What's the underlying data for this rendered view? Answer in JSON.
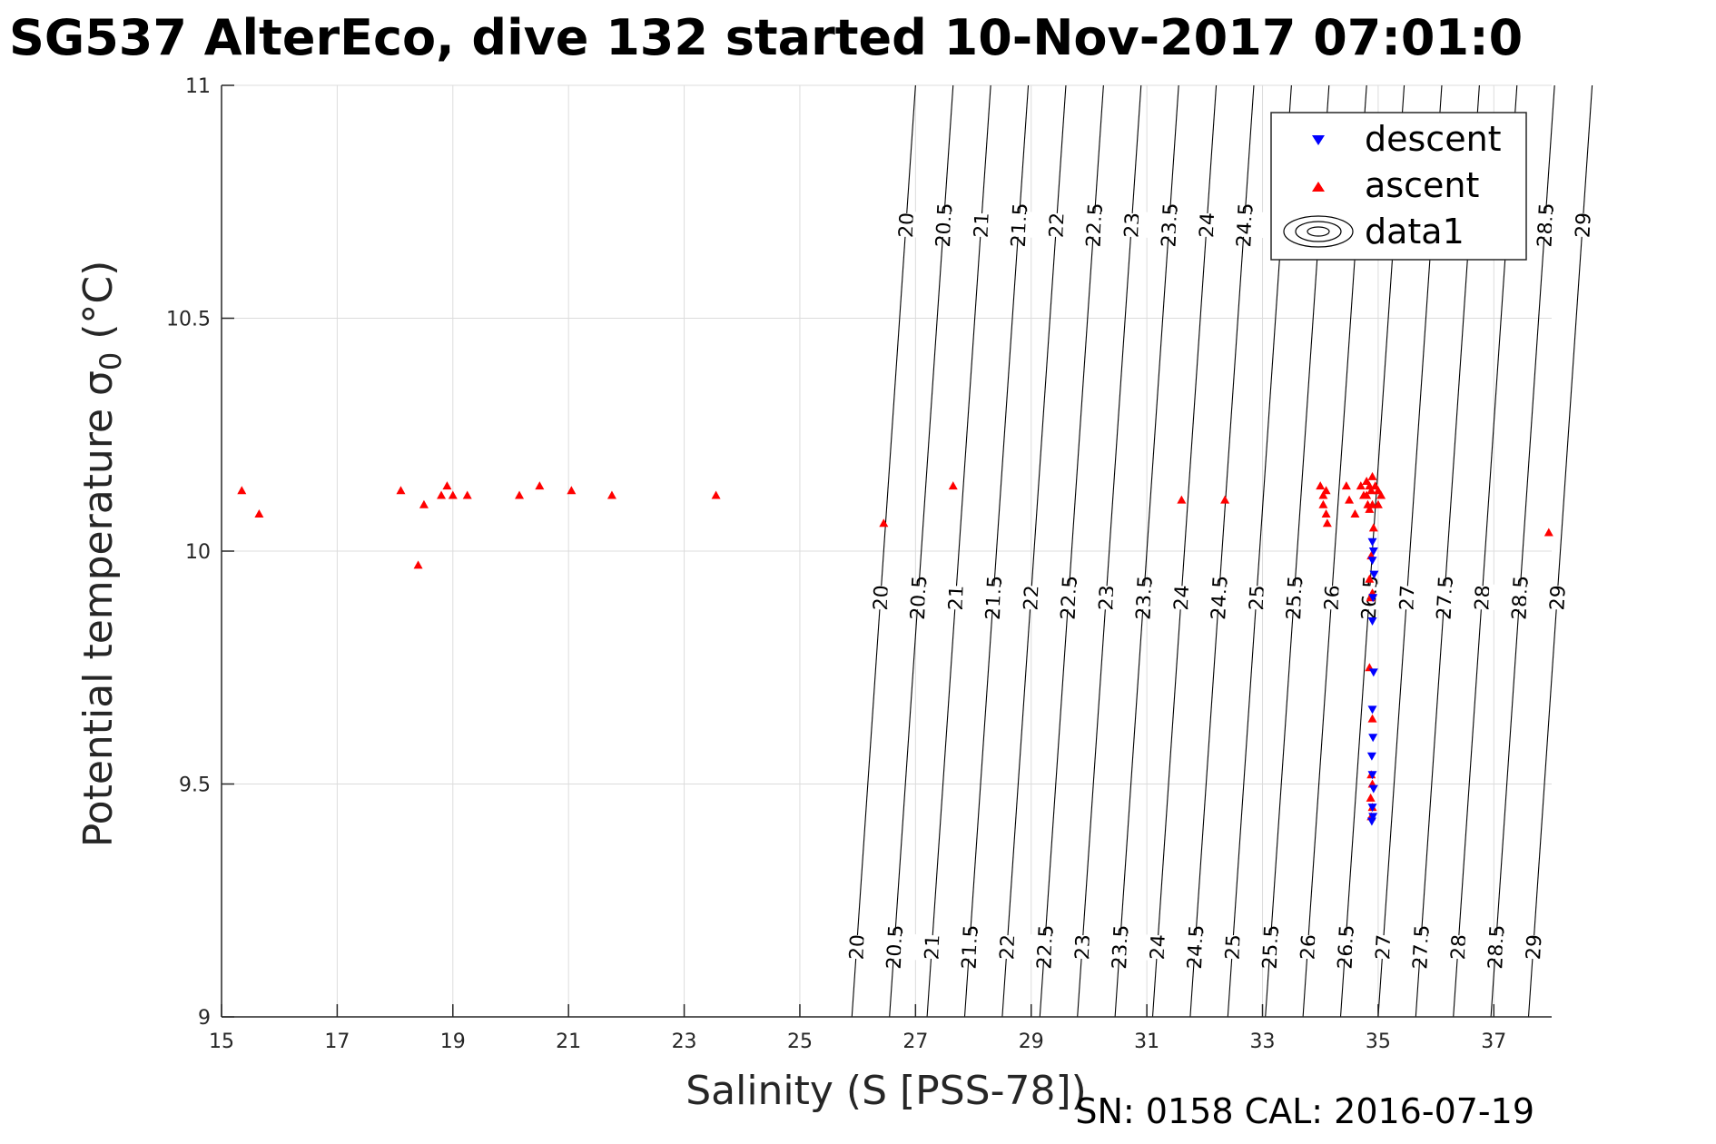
{
  "chart_data": {
    "type": "scatter",
    "title": "SG537 AlterEco, dive 132 started 10-Nov-2017 07:01:0",
    "xlabel": "Salinity (S [PSS-78])",
    "ylabel_main": "Potential temperature σ",
    "ylabel_sub": "0",
    "ylabel_unit": " (°C)",
    "xlim": [
      15,
      38
    ],
    "ylim": [
      9,
      11
    ],
    "x_ticks": [
      15,
      17,
      19,
      21,
      23,
      25,
      27,
      29,
      31,
      33,
      35,
      37
    ],
    "y_ticks": [
      9,
      9.5,
      10,
      10.5,
      11
    ],
    "y_tick_labels": [
      "9",
      "9.5",
      "10",
      "10.5",
      "11"
    ],
    "grid": true,
    "legend_position": "top-right",
    "footer": "SN: 0158  CAL: 2016-07-19",
    "density_contours": {
      "name": "data1",
      "levels": [
        20,
        20.5,
        21,
        21.5,
        22,
        22.5,
        23,
        23.5,
        24,
        24.5,
        25,
        25.5,
        26,
        26.5,
        27,
        27.5,
        28,
        28.5,
        29
      ],
      "level_labels": [
        "20",
        "20.5",
        "21",
        "21.5",
        "22",
        "22.5",
        "23",
        "23.5",
        "24",
        "24.5",
        "25",
        "25.5",
        "26",
        "26.5",
        "27",
        "27.5",
        "28",
        "28.5",
        "29"
      ],
      "salinity_at_9C": [
        25.9,
        26.55,
        27.2,
        27.85,
        28.5,
        29.15,
        29.8,
        30.45,
        31.1,
        31.75,
        32.4,
        33.05,
        33.7,
        34.35,
        35.0,
        35.65,
        36.3,
        36.95,
        37.6
      ],
      "slope_salinity_per_degC": 0.55,
      "label_temps": [
        9.15,
        9.9,
        10.7
      ]
    },
    "series": [
      {
        "name": "descent",
        "color": "#0000ff",
        "marker": "triangle-down",
        "points": [
          [
            34.9,
            10.02
          ],
          [
            34.92,
            10.0
          ],
          [
            34.9,
            9.98
          ],
          [
            34.93,
            9.95
          ],
          [
            34.91,
            9.9
          ],
          [
            34.9,
            9.85
          ],
          [
            34.92,
            9.74
          ],
          [
            34.9,
            9.66
          ],
          [
            34.91,
            9.6
          ],
          [
            34.89,
            9.56
          ],
          [
            34.9,
            9.52
          ],
          [
            34.92,
            9.49
          ],
          [
            34.9,
            9.45
          ],
          [
            34.91,
            9.43
          ],
          [
            34.89,
            9.42
          ]
        ]
      },
      {
        "name": "ascent",
        "color": "#ff0000",
        "marker": "triangle-up",
        "points": [
          [
            15.35,
            10.13
          ],
          [
            15.65,
            10.08
          ],
          [
            18.1,
            10.13
          ],
          [
            18.4,
            9.97
          ],
          [
            18.5,
            10.1
          ],
          [
            18.8,
            10.12
          ],
          [
            18.9,
            10.14
          ],
          [
            19.0,
            10.12
          ],
          [
            19.25,
            10.12
          ],
          [
            20.15,
            10.12
          ],
          [
            20.5,
            10.14
          ],
          [
            21.05,
            10.13
          ],
          [
            21.75,
            10.12
          ],
          [
            23.55,
            10.12
          ],
          [
            26.45,
            10.06
          ],
          [
            27.65,
            10.14
          ],
          [
            31.6,
            10.11
          ],
          [
            32.35,
            10.11
          ],
          [
            34.0,
            10.14
          ],
          [
            34.05,
            10.12
          ],
          [
            34.1,
            10.13
          ],
          [
            34.05,
            10.1
          ],
          [
            34.1,
            10.08
          ],
          [
            34.12,
            10.06
          ],
          [
            34.45,
            10.14
          ],
          [
            34.5,
            10.11
          ],
          [
            34.6,
            10.08
          ],
          [
            34.7,
            10.14
          ],
          [
            34.75,
            10.12
          ],
          [
            34.8,
            10.15
          ],
          [
            34.85,
            10.14
          ],
          [
            34.88,
            10.13
          ],
          [
            34.9,
            10.16
          ],
          [
            34.95,
            10.14
          ],
          [
            35.0,
            10.13
          ],
          [
            35.05,
            10.12
          ],
          [
            34.82,
            10.1
          ],
          [
            34.85,
            10.09
          ],
          [
            34.9,
            10.1
          ],
          [
            35.0,
            10.1
          ],
          [
            34.8,
            10.12
          ],
          [
            34.92,
            10.05
          ],
          [
            34.88,
            9.99
          ],
          [
            34.85,
            9.94
          ],
          [
            34.9,
            9.91
          ],
          [
            34.87,
            9.9
          ],
          [
            34.85,
            9.75
          ],
          [
            34.9,
            9.64
          ],
          [
            34.88,
            9.52
          ],
          [
            34.9,
            9.5
          ],
          [
            34.87,
            9.47
          ],
          [
            34.9,
            9.45
          ],
          [
            34.88,
            9.43
          ],
          [
            37.95,
            10.04
          ]
        ]
      }
    ]
  }
}
